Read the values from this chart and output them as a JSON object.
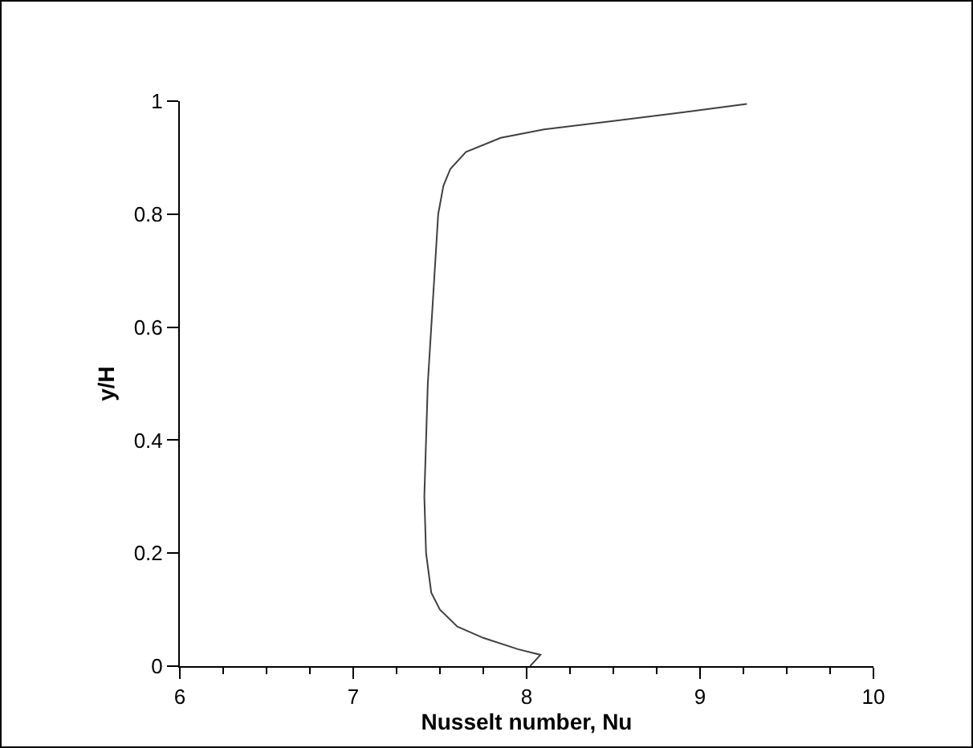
{
  "chart_data": {
    "type": "line",
    "xlabel": "Nusselt number, Nu",
    "ylabel": "y/H",
    "xlim": [
      6,
      10
    ],
    "xticks": [
      6,
      7,
      8,
      9,
      10
    ],
    "ylim": [
      0,
      1
    ],
    "yticks": [
      0,
      0.2,
      0.4,
      0.6,
      0.8,
      1
    ],
    "marker": "none",
    "line_style": "solid",
    "series": [
      {
        "color": "#404040",
        "x": [
          8.02,
          8.08,
          7.95,
          7.75,
          7.6,
          7.5,
          7.45,
          7.42,
          7.41,
          7.42,
          7.43,
          7.45,
          7.47,
          7.49,
          7.52,
          7.56,
          7.65,
          7.85,
          8.1,
          8.5,
          8.9,
          9.27
        ],
        "values": [
          0.0,
          0.02,
          0.03,
          0.05,
          0.07,
          0.1,
          0.13,
          0.2,
          0.3,
          0.4,
          0.5,
          0.6,
          0.7,
          0.8,
          0.85,
          0.88,
          0.91,
          0.935,
          0.95,
          0.965,
          0.98,
          0.995
        ]
      }
    ]
  }
}
